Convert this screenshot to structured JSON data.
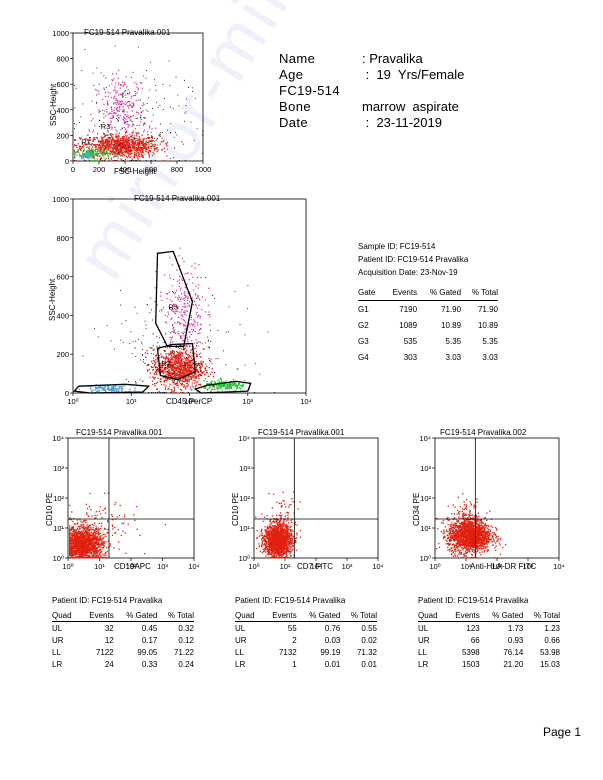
{
  "patient": {
    "rows": [
      {
        "label": "Name",
        "value": ": Pravalika"
      },
      {
        "label": "Age",
        "value": " :  19  Yrs/Female"
      },
      {
        "label": "FC19-514",
        "value": ""
      },
      {
        "label": "Bone",
        "value": "marrow  aspirate"
      },
      {
        "label": "Date",
        "value": " :  23-11-2019"
      }
    ]
  },
  "sample_info": {
    "sample_id": "Sample ID: FC19-514",
    "patient_id": "Patient ID: FC19-514 Pravalika",
    "acq_date": "Acquisition Date: 23-Nov-19"
  },
  "gate_table": {
    "headers": [
      "Gate",
      "Events",
      "% Gated",
      "% Total"
    ],
    "rows": [
      [
        "G1",
        "7190",
        "71.90",
        "71.90"
      ],
      [
        "G2",
        "1089",
        "10.89",
        "10.89"
      ],
      [
        "G3",
        "535",
        "5.35",
        "5.35"
      ],
      [
        "G4",
        "303",
        "3.03",
        "3.03"
      ]
    ]
  },
  "quad_tables": [
    {
      "patient_id": "Patient ID: FC19-514 Pravalika",
      "headers": [
        "Quad",
        "Events",
        "% Gated",
        "% Total"
      ],
      "rows": [
        [
          "UL",
          "32",
          "0.45",
          "0.32"
        ],
        [
          "UR",
          "12",
          "0.17",
          "0.12"
        ],
        [
          "LL",
          "7122",
          "99.05",
          "71.22"
        ],
        [
          "LR",
          "24",
          "0.33",
          "0.24"
        ]
      ]
    },
    {
      "patient_id": "Patient ID: FC19-514 Pravalika",
      "headers": [
        "Quad",
        "Events",
        "% Gated",
        "% Total"
      ],
      "rows": [
        [
          "UL",
          "55",
          "0.76",
          "0.55"
        ],
        [
          "UR",
          "2",
          "0.03",
          "0.02"
        ],
        [
          "LL",
          "7132",
          "99.19",
          "71.32"
        ],
        [
          "LR",
          "1",
          "0.01",
          "0.01"
        ]
      ]
    },
    {
      "patient_id": "Patient ID: FC19-514 Pravalika",
      "headers": [
        "Quad",
        "Events",
        "% Gated",
        "% Total"
      ],
      "rows": [
        [
          "UL",
          "123",
          "1.73",
          "1.23"
        ],
        [
          "UR",
          "66",
          "0.93",
          "0.66"
        ],
        [
          "LL",
          "5398",
          "76.14",
          "53.98"
        ],
        [
          "LR",
          "1503",
          "21.20",
          "15.03"
        ]
      ]
    }
  ],
  "page_label": "Page 1",
  "watermark": "mirror-milaap 21733",
  "chart_data": [
    {
      "type": "scatter",
      "title": "FC19-514 Pravalika.001",
      "xlabel": "FSC-Height",
      "ylabel": "SSC-Height",
      "xscale": "linear",
      "yscale": "linear",
      "xlim": [
        0,
        1000
      ],
      "ylim": [
        0,
        1000
      ],
      "xticks": [
        "0",
        "200",
        "400",
        "600",
        "800",
        "1000"
      ],
      "yticks": [
        "0",
        "200",
        "400",
        "600",
        "800",
        "1000"
      ],
      "gate_labels": [
        "R3",
        "R1"
      ],
      "series": [
        {
          "color": "#e02010",
          "cx": 360,
          "cy": 120,
          "sx": 150,
          "sy": 45,
          "count": 900
        },
        {
          "color": "#e040b0",
          "cx": 370,
          "cy": 400,
          "sx": 100,
          "sy": 130,
          "count": 260
        },
        {
          "color": "#20c030",
          "cx": 150,
          "cy": 60,
          "sx": 70,
          "sy": 22,
          "count": 130
        },
        {
          "color": "#40a0e0",
          "cx": 90,
          "cy": 40,
          "sx": 25,
          "sy": 12,
          "count": 30
        },
        {
          "color": "#000000",
          "cx": 430,
          "cy": 300,
          "sx": 230,
          "sy": 230,
          "count": 220
        }
      ]
    },
    {
      "type": "scatter",
      "title": "FC19-514 Pravalika.001",
      "xlabel": "CD45 PerCP",
      "ylabel": "SSC-Height",
      "xscale": "log",
      "yscale": "linear",
      "xlim": [
        1,
        10000
      ],
      "ylim": [
        0,
        1000
      ],
      "xticks": [
        "10⁰",
        "10¹",
        "10²",
        "10³",
        "10⁴"
      ],
      "yticks": [
        "0",
        "200",
        "400",
        "600",
        "800",
        "1000"
      ],
      "gate_labels": [
        "R3",
        "R1"
      ],
      "series": [
        {
          "color": "#e02010",
          "lcx": 1.8,
          "cy": 130,
          "lsx": 0.22,
          "sy": 50,
          "count": 900
        },
        {
          "color": "#e040b0",
          "lcx": 1.9,
          "cy": 430,
          "lsx": 0.17,
          "sy": 130,
          "count": 260
        },
        {
          "color": "#20c030",
          "lcx": 2.6,
          "cy": 40,
          "lsx": 0.18,
          "sy": 12,
          "count": 200
        },
        {
          "color": "#40a0e0",
          "lcx": 0.6,
          "cy": 25,
          "lsx": 0.2,
          "sy": 10,
          "count": 120
        },
        {
          "color": "#000000",
          "lcx": 1.7,
          "cy": 220,
          "lsx": 0.55,
          "sy": 160,
          "count": 260
        }
      ]
    },
    {
      "type": "scatter",
      "title": "FC19-514 Pravalika.001",
      "xlabel": "CD19APC",
      "ylabel": "CD10 PE",
      "xscale": "log",
      "yscale": "log",
      "xlim": [
        1,
        10000
      ],
      "ylim": [
        1,
        10000
      ],
      "xticks": [
        "10⁰",
        "10¹",
        "10²",
        "10³",
        "10⁴"
      ],
      "yticks": [
        "10⁰",
        "10¹",
        "10²",
        "10³",
        "10⁴"
      ],
      "quadrant": {
        "x": 20,
        "y": 20
      },
      "series": [
        {
          "color": "#e02010",
          "lcx": 0.45,
          "lcy": 0.45,
          "lsx": 0.32,
          "lsy": 0.3,
          "count": 1600
        },
        {
          "color": "#e02010",
          "lcx": 1.1,
          "lcy": 1.1,
          "lsx": 0.55,
          "lsy": 0.45,
          "count": 90
        }
      ]
    },
    {
      "type": "scatter",
      "title": "FC19-514 Pravalika.001",
      "xlabel": "CD7 FITC",
      "ylabel": "CD10 PE",
      "xscale": "log",
      "yscale": "log",
      "xlim": [
        1,
        10000
      ],
      "ylim": [
        1,
        10000
      ],
      "xticks": [
        "10⁰",
        "10¹",
        "10²",
        "10³",
        "10⁴"
      ],
      "yticks": [
        "10⁰",
        "10¹",
        "10²",
        "10³",
        "10⁴"
      ],
      "quadrant": {
        "x": 20,
        "y": 20
      },
      "series": [
        {
          "color": "#e02010",
          "lcx": 0.75,
          "lcy": 0.6,
          "lsx": 0.22,
          "lsy": 0.28,
          "count": 1500
        },
        {
          "color": "#e02010",
          "lcx": 0.9,
          "lcy": 1.3,
          "lsx": 0.3,
          "lsy": 0.45,
          "count": 90
        }
      ]
    },
    {
      "type": "scatter",
      "title": "FC19-514 Pravalika.002",
      "xlabel": "Anti-HLA-DR FITC",
      "ylabel": "CD34 PE",
      "xscale": "log",
      "yscale": "log",
      "xlim": [
        1,
        10000
      ],
      "ylim": [
        1,
        10000
      ],
      "xticks": [
        "10⁰",
        "10¹",
        "10²",
        "10³",
        "10⁴"
      ],
      "yticks": [
        "10⁰",
        "10¹",
        "10²",
        "10³",
        "10⁴"
      ],
      "quadrant": {
        "x": 20,
        "y": 20
      },
      "series": [
        {
          "color": "#e02010",
          "lcx": 1.1,
          "lcy": 0.75,
          "lsx": 0.35,
          "lsy": 0.28,
          "count": 1600
        },
        {
          "color": "#e02010",
          "lcx": 1.0,
          "lcy": 1.4,
          "lsx": 0.25,
          "lsy": 0.3,
          "count": 120
        }
      ]
    }
  ]
}
